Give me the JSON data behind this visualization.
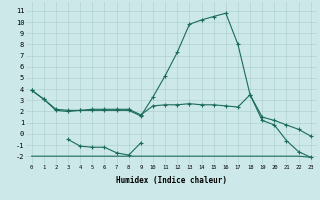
{
  "xlabel": "Humidex (Indice chaleur)",
  "background_color": "#cce8e8",
  "grid_color": "#aacccc",
  "line_color": "#1a6b5a",
  "x_values": [
    0,
    1,
    2,
    3,
    4,
    5,
    6,
    7,
    8,
    9,
    10,
    11,
    12,
    13,
    14,
    15,
    16,
    17,
    18,
    19,
    20,
    21,
    22,
    23
  ],
  "line_peak": [
    3.9,
    3.1,
    2.1,
    2.0,
    2.1,
    2.1,
    2.1,
    2.1,
    2.1,
    1.6,
    3.3,
    5.2,
    7.3,
    9.8,
    10.2,
    10.5,
    10.8,
    8.0,
    3.5,
    1.2,
    0.8,
    -0.6,
    -1.6,
    -2.1
  ],
  "line_flat": [
    3.9,
    3.1,
    2.2,
    2.1,
    2.1,
    2.2,
    2.2,
    2.2,
    2.2,
    1.7,
    2.5,
    2.6,
    2.6,
    2.7,
    2.6,
    2.6,
    2.5,
    2.4,
    3.5,
    1.5,
    1.2,
    0.8,
    0.4,
    -0.2
  ],
  "line_dip_x": [
    3,
    4,
    5,
    6,
    7,
    8,
    9
  ],
  "line_dip_y": [
    -0.5,
    -1.1,
    -1.2,
    -1.2,
    -1.7,
    -1.9,
    -0.8
  ],
  "line_bottom": [
    0,
    1,
    2,
    3,
    4,
    5,
    6,
    7,
    8,
    9,
    10,
    11,
    12,
    13,
    14,
    15,
    16,
    17,
    18,
    19,
    20,
    21,
    22,
    23
  ],
  "line_bottom_y": [
    -2.0,
    -2.0,
    -2.0,
    -2.0,
    -2.0,
    -2.0,
    -2.0,
    -2.0,
    -2.0,
    -2.0,
    -2.0,
    -2.0,
    -2.0,
    -2.0,
    -2.0,
    -2.0,
    -2.0,
    -2.0,
    -2.0,
    -2.0,
    -2.0,
    -2.0,
    -2.0,
    -2.1
  ],
  "ylim": [
    -2.7,
    11.8
  ],
  "yticks": [
    -2,
    -1,
    0,
    1,
    2,
    3,
    4,
    5,
    6,
    7,
    8,
    9,
    10,
    11
  ],
  "xlim": [
    -0.5,
    23.5
  ]
}
